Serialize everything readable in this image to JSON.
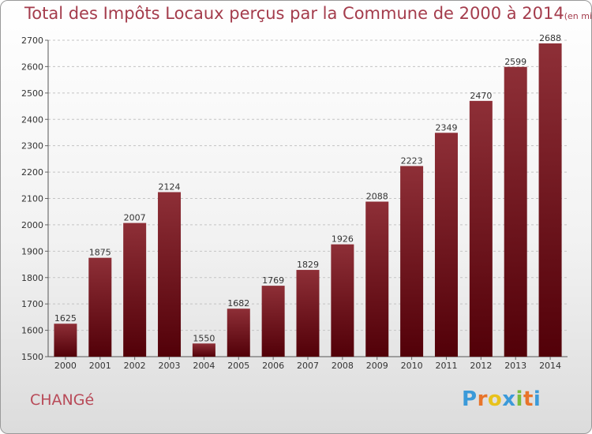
{
  "chart_data": {
    "type": "bar",
    "title": "Total des Impôts Locaux perçus par la Commune de 2000 à 2014",
    "unit_label": "(en milliers d'€)",
    "categories": [
      "2000",
      "2001",
      "2002",
      "2003",
      "2004",
      "2005",
      "2006",
      "2007",
      "2008",
      "2009",
      "2010",
      "2011",
      "2012",
      "2013",
      "2014"
    ],
    "values": [
      1625,
      1875,
      2007,
      2124,
      1550,
      1682,
      1769,
      1829,
      1926,
      2088,
      2223,
      2349,
      2470,
      2599,
      2688
    ],
    "ylim": [
      1500,
      2700
    ],
    "yticks": [
      1500,
      1600,
      1700,
      1800,
      1900,
      2000,
      2100,
      2200,
      2300,
      2400,
      2500,
      2600,
      2700
    ],
    "xlabel": "",
    "ylabel": "",
    "grid": true,
    "bar_color": "#7a1a22",
    "title_color": "#a43c4c"
  },
  "commune": "CHANGé",
  "logo": {
    "text": "Proxiti",
    "letter_colors": [
      "#3b9ad9",
      "#e8742a",
      "#e8c21c",
      "#3b9ad9",
      "#7cbd3b",
      "#e8742a",
      "#3b9ad9"
    ]
  }
}
